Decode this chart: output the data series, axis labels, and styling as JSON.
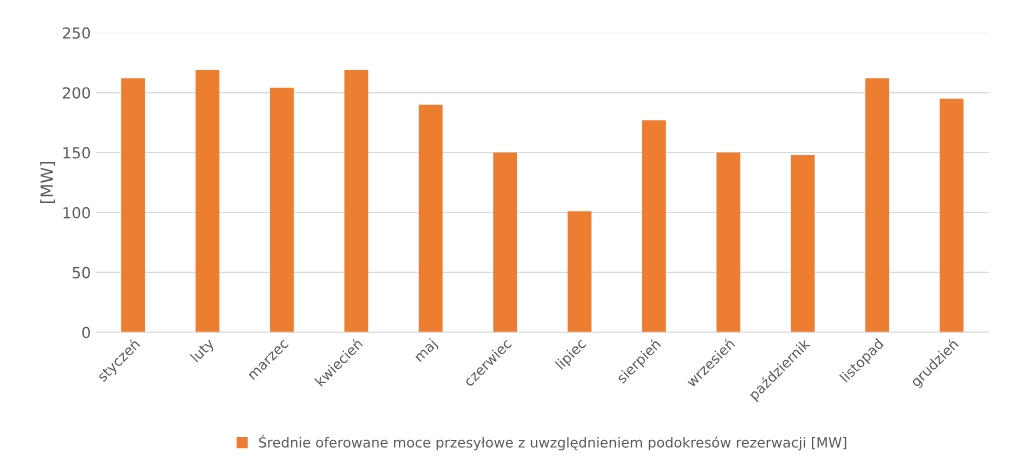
{
  "chart_data": {
    "type": "bar",
    "ylabel": "[MW]",
    "categories": [
      "styczeń",
      "luty",
      "marzec",
      "kwiecień",
      "maj",
      "czerwiec",
      "lipiec",
      "sierpień",
      "wrzesień",
      "październik",
      "listopad",
      "grudzień"
    ],
    "series": [
      {
        "name": "Średnie oferowane moce przesyłowe z uwzględnieniem podokresów rezerwacji [MW]",
        "color": "#ed7d31",
        "values": [
          212,
          219,
          204,
          219,
          190,
          150,
          101,
          177,
          150,
          148,
          212,
          195
        ]
      }
    ],
    "ylim": [
      0,
      250
    ],
    "yticks": [
      0,
      50,
      100,
      150,
      200,
      250
    ],
    "grid": "y",
    "legend": "bottom"
  }
}
